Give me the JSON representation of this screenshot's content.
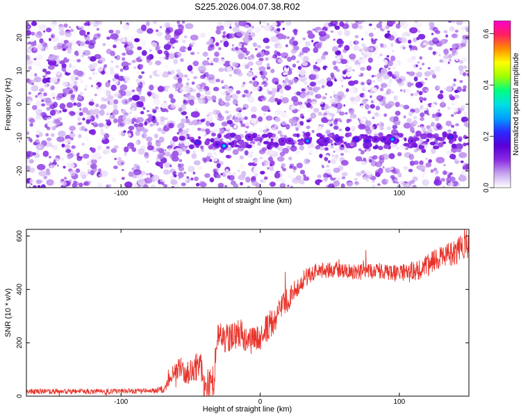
{
  "title": "S225.2026.004.07.38.R02",
  "colors": {
    "snr_line": "#e8332a",
    "frame": "#000000",
    "colormap": [
      "#ffffff",
      "#c8a6ef",
      "#8a2be2",
      "#5a00d6",
      "#2a2aff",
      "#00a0ff",
      "#00e0e0",
      "#00ff7f",
      "#a0ff00",
      "#ffff00",
      "#ff8c00",
      "#ff2060",
      "#ff00cc"
    ]
  },
  "chart_data": [
    {
      "type": "heatmap",
      "xlabel": "Height of straight line (km)",
      "ylabel": "Frequency (Hz)",
      "xlim": [
        -168,
        150
      ],
      "ylim": [
        -25,
        25
      ],
      "xticks": [
        -100,
        0,
        100
      ],
      "xtick_labels": [
        "-100",
        "0",
        "100"
      ],
      "yticks": [
        -20,
        -10,
        0,
        10,
        20
      ],
      "ytick_labels": [
        "-20",
        "-10",
        "0",
        "10",
        "20"
      ],
      "colorbar": {
        "label": "Normalized spectral amplitude",
        "range": [
          0,
          0.65
        ],
        "ticks": [
          0,
          0.2,
          0.4,
          0.6
        ],
        "tick_labels": [
          "0.0",
          "0.2",
          "0.4",
          "0.6"
        ]
      },
      "background_amplitude_range": [
        0,
        0.15
      ],
      "signal_band": {
        "frequency_hz": -11,
        "x_range": [
          -50,
          150
        ],
        "peaks": [
          {
            "x": -45,
            "f": -11.5,
            "amp": 0.22
          },
          {
            "x": -31,
            "f": -12.0,
            "amp": 0.18
          },
          {
            "x": -26,
            "f": -12.5,
            "amp": 0.32
          },
          {
            "x": -8,
            "f": -9.8,
            "amp": 0.16
          },
          {
            "x": 16,
            "f": -11.0,
            "amp": 0.15
          },
          {
            "x": 21,
            "f": -11.0,
            "amp": 0.15
          },
          {
            "x": 34,
            "f": -11.0,
            "amp": 0.28
          },
          {
            "x": 47,
            "f": -11.0,
            "amp": 0.18
          },
          {
            "x": 56,
            "f": -10.5,
            "amp": 0.2
          },
          {
            "x": 69,
            "f": -10.5,
            "amp": 0.22
          },
          {
            "x": 77,
            "f": -11.0,
            "amp": 0.2
          },
          {
            "x": 83,
            "f": -10.5,
            "amp": 0.16
          },
          {
            "x": 89,
            "f": -10.5,
            "amp": 0.18
          },
          {
            "x": 95,
            "f": -10.5,
            "amp": 0.3
          },
          {
            "x": 109,
            "f": -11.0,
            "amp": 0.15
          },
          {
            "x": 137,
            "f": -9.8,
            "amp": 0.22
          }
        ]
      }
    },
    {
      "type": "line",
      "xlabel": "Height of straight line (km)",
      "ylabel": "SNR (10 * v/v)",
      "xlim": [
        -168,
        150
      ],
      "ylim": [
        0,
        625
      ],
      "xticks": [
        -100,
        0,
        100
      ],
      "xtick_labels": [
        "-100",
        "0",
        "100"
      ],
      "yticks": [
        0,
        200,
        400,
        600
      ],
      "ytick_labels": [
        "0",
        "200",
        "400",
        "600"
      ],
      "series": [
        {
          "x": [
            -168,
            -150,
            -130,
            -110,
            -90,
            -75,
            -68,
            -63,
            -58,
            -53,
            -48,
            -43,
            -40,
            -36,
            -33,
            -30,
            -27,
            -22,
            -15,
            -8,
            0,
            10,
            20,
            30,
            40,
            55,
            70,
            85,
            100,
            115,
            130,
            142,
            150
          ],
          "y": [
            18,
            17,
            18,
            17,
            19,
            20,
            28,
            90,
            110,
            85,
            95,
            130,
            20,
            60,
            70,
            260,
            210,
            220,
            240,
            205,
            215,
            290,
            365,
            430,
            470,
            475,
            465,
            470,
            460,
            475,
            520,
            545,
            575
          ],
          "noise_half_amplitude": [
            10,
            10,
            10,
            10,
            10,
            10,
            15,
            35,
            45,
            45,
            50,
            55,
            60,
            70,
            75,
            70,
            60,
            55,
            55,
            50,
            50,
            55,
            45,
            40,
            30,
            30,
            30,
            30,
            30,
            40,
            45,
            50,
            55
          ]
        }
      ]
    }
  ]
}
